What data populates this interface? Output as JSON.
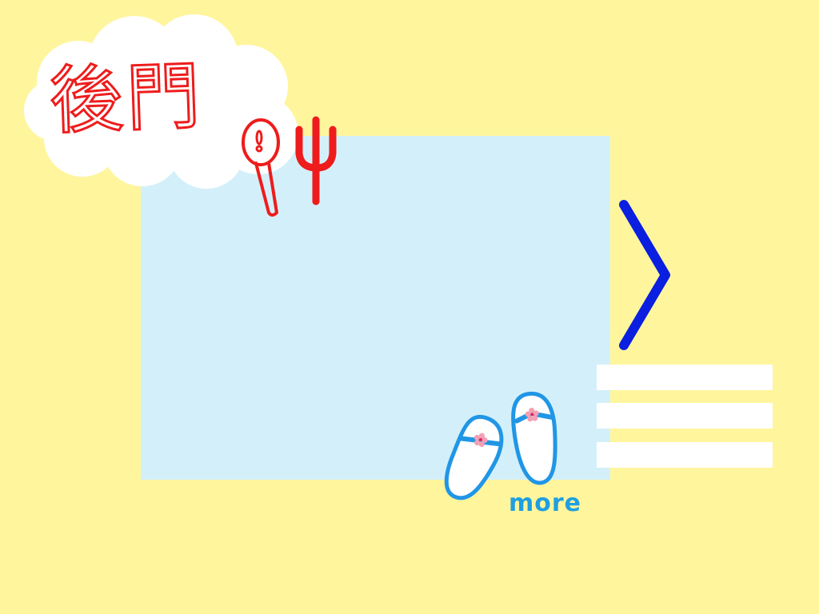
{
  "header": {
    "title": "後門"
  },
  "menu": {
    "item_count": 3
  },
  "more": {
    "label": "more"
  },
  "icons": {
    "cloud": "cloud-shape",
    "utensils": "spoon-and-fork-icon",
    "next": "chevron-right-icon",
    "more": "flip-flops-icon"
  },
  "colors": {
    "background": "#fff59d",
    "panel": "#d3f0fa",
    "title": "#ee1c1c",
    "arrow": "#0a1fe0",
    "more": "#1f9fe0",
    "menu_bars": "#ffffff"
  }
}
